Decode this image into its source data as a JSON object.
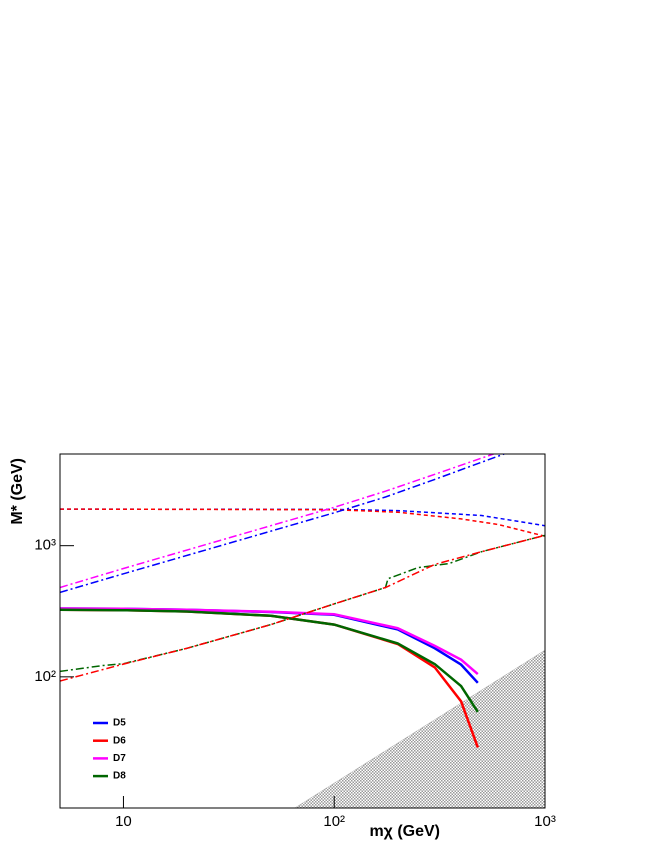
{
  "chart_data": {
    "type": "line",
    "x_label": "mχ (GeV)",
    "y_label": "M* (GeV)",
    "xscale": "log",
    "yscale": "log",
    "xlim": [
      5,
      1000
    ],
    "ylim": [
      10,
      5000
    ],
    "xticks": [
      10,
      {
        "value": 100,
        "label": "10²"
      },
      {
        "value": 1000,
        "label": "10³"
      }
    ],
    "yticks": [
      {
        "value": 100,
        "label": "10²"
      },
      {
        "value": 1000,
        "label": "10³"
      }
    ],
    "legend": "bottom left",
    "series": [
      {
        "name": "D5",
        "color": "#0000ff",
        "style": "solid",
        "x": [
          5,
          10,
          20,
          50,
          100,
          200,
          300,
          400,
          480
        ],
        "values": [
          332,
          330,
          325,
          312,
          297,
          230,
          165,
          124,
          90
        ]
      },
      {
        "name": "D6",
        "color": "#ff0000",
        "style": "solid",
        "x": [
          5,
          10,
          20,
          50,
          100,
          200,
          300,
          400,
          480
        ],
        "values": [
          325,
          322,
          315,
          292,
          250,
          178,
          118,
          65,
          29
        ]
      },
      {
        "name": "D7",
        "color": "#ff00ff",
        "style": "solid",
        "x": [
          5,
          10,
          20,
          50,
          100,
          200,
          300,
          400,
          480
        ],
        "values": [
          332,
          330,
          325,
          313,
          300,
          235,
          172,
          135,
          105
        ]
      },
      {
        "name": "D8",
        "color": "#006600",
        "style": "solid",
        "x": [
          5,
          10,
          20,
          50,
          100,
          200,
          300,
          400,
          480
        ],
        "values": [
          325,
          322,
          315,
          292,
          250,
          180,
          125,
          85,
          54
        ]
      },
      {
        "color": "#0000ff",
        "style": "dashed",
        "x": [
          5,
          100,
          200,
          500,
          1000
        ],
        "values": [
          1900,
          1890,
          1850,
          1700,
          1420
        ]
      },
      {
        "color": "#ff0000",
        "style": "dashed",
        "x": [
          5,
          100,
          200,
          400,
          600,
          1000
        ],
        "values": [
          1900,
          1880,
          1800,
          1600,
          1450,
          1180
        ]
      },
      {
        "color": "#0000ff",
        "style": "dashdot",
        "x": [
          5,
          10,
          100,
          175,
          300,
          640
        ],
        "values": [
          440,
          610,
          1780,
          2350,
          3200,
          5000
        ]
      },
      {
        "color": "#ff00ff",
        "style": "dashdot",
        "x": [
          5,
          10,
          100,
          175,
          300,
          570
        ],
        "values": [
          480,
          670,
          1960,
          2600,
          3500,
          5000
        ]
      },
      {
        "color": "#006600",
        "style": "dashdot",
        "x": [
          5,
          8,
          10,
          20,
          50,
          100,
          175,
          180,
          250,
          350,
          500,
          1000
        ],
        "values": [
          110,
          122,
          126,
          165,
          250,
          360,
          480,
          560,
          680,
          730,
          900,
          1200
        ]
      },
      {
        "color": "#ff0000",
        "style": "dashdot",
        "x": [
          5,
          10,
          20,
          50,
          100,
          175,
          300,
          500,
          1000
        ],
        "values": [
          93,
          125,
          165,
          250,
          360,
          480,
          720,
          900,
          1200
        ]
      }
    ],
    "shaded_region": {
      "color": "#b0b0b0",
      "x": [
        65,
        1000,
        1000
      ],
      "values": [
        10,
        160,
        10
      ]
    }
  }
}
